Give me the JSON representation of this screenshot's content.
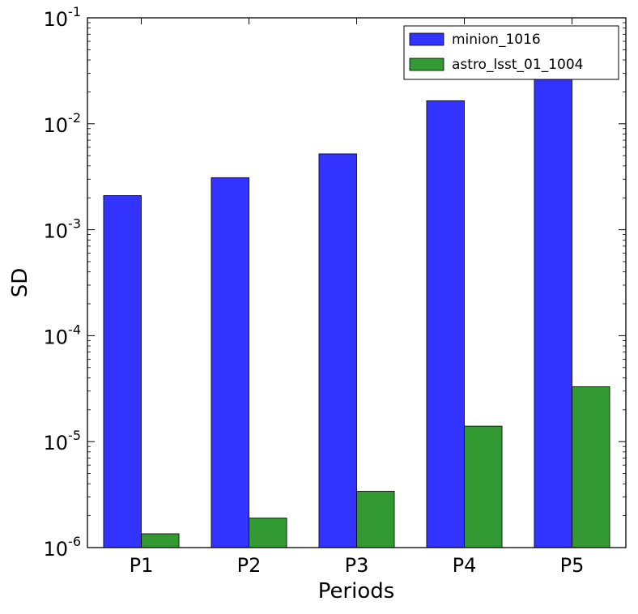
{
  "chart_data": {
    "type": "bar",
    "xlabel": "Periods",
    "ylabel": "SD",
    "yscale": "log",
    "ylim": [
      1e-06,
      0.1
    ],
    "yticks": [
      {
        "value": 1e-06,
        "base": "10",
        "exp": "-6"
      },
      {
        "value": 1e-05,
        "base": "10",
        "exp": "-5"
      },
      {
        "value": 0.0001,
        "base": "10",
        "exp": "-4"
      },
      {
        "value": 0.001,
        "base": "10",
        "exp": "-3"
      },
      {
        "value": 0.01,
        "base": "10",
        "exp": "-2"
      },
      {
        "value": 0.1,
        "base": "10",
        "exp": "-1"
      }
    ],
    "categories": [
      "P1",
      "P2",
      "P3",
      "P4",
      "P5"
    ],
    "series": [
      {
        "name": "minion_1016",
        "color": "#3333ff",
        "values": [
          0.0021,
          0.0031,
          0.0052,
          0.0165,
          0.028
        ]
      },
      {
        "name": "astro_lsst_01_1004",
        "color": "#339933",
        "values": [
          1.35e-06,
          1.9e-06,
          3.4e-06,
          1.4e-05,
          3.3e-05
        ]
      }
    ],
    "legend_position": "top-right",
    "grid": false
  }
}
